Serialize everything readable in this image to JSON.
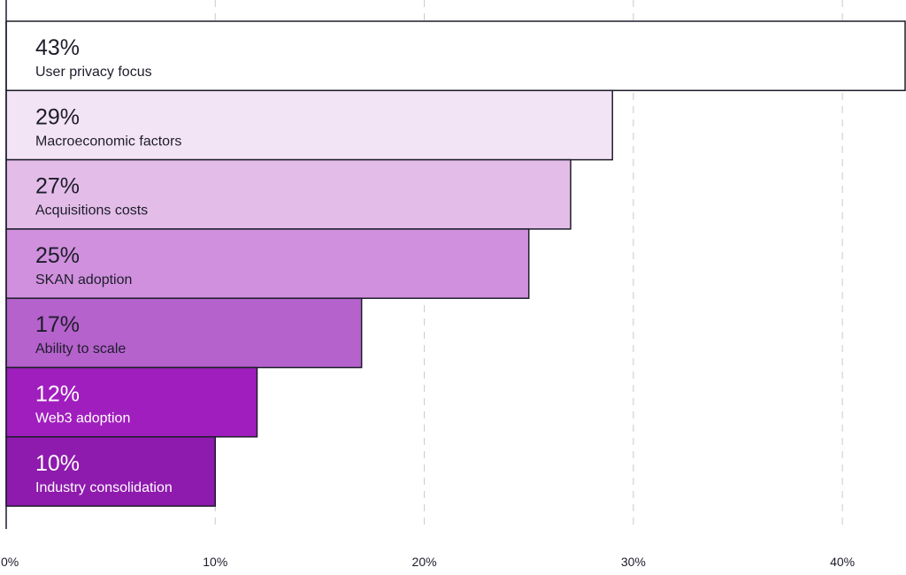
{
  "chart_data": {
    "type": "bar",
    "orientation": "horizontal",
    "title": "",
    "xlabel": "",
    "ylabel": "",
    "xlim": [
      0,
      43
    ],
    "grid": true,
    "legend": "none",
    "x_ticks": [
      {
        "value": 0,
        "label": "0%"
      },
      {
        "value": 10,
        "label": "10%"
      },
      {
        "value": 20,
        "label": "20%"
      },
      {
        "value": 30,
        "label": "30%"
      },
      {
        "value": 40,
        "label": "40%"
      }
    ],
    "bars": [
      {
        "category": "User privacy focus",
        "value": 43,
        "value_label": "43%",
        "color": "#ffffff",
        "text_color": "#1d1d2b"
      },
      {
        "category": "Macroeconomic factors",
        "value": 29,
        "value_label": "29%",
        "color": "#f3e4f5",
        "text_color": "#1d1d2b"
      },
      {
        "category": "Acquisitions costs",
        "value": 27,
        "value_label": "27%",
        "color": "#e3bde8",
        "text_color": "#1d1d2b"
      },
      {
        "category": "SKAN adoption",
        "value": 25,
        "value_label": "25%",
        "color": "#d090dd",
        "text_color": "#1d1d2b"
      },
      {
        "category": "Ability to scale",
        "value": 17,
        "value_label": "17%",
        "color": "#b562cc",
        "text_color": "#1d1d2b"
      },
      {
        "category": "Web3 adoption",
        "value": 12,
        "value_label": "12%",
        "color": "#a01ebe",
        "text_color": "#ffffff"
      },
      {
        "category": "Industry consolidation",
        "value": 10,
        "value_label": "10%",
        "color": "#8e1aae",
        "text_color": "#ffffff"
      }
    ],
    "border_color": "#1d1d2b",
    "grid_color": "#c9c9d1"
  }
}
